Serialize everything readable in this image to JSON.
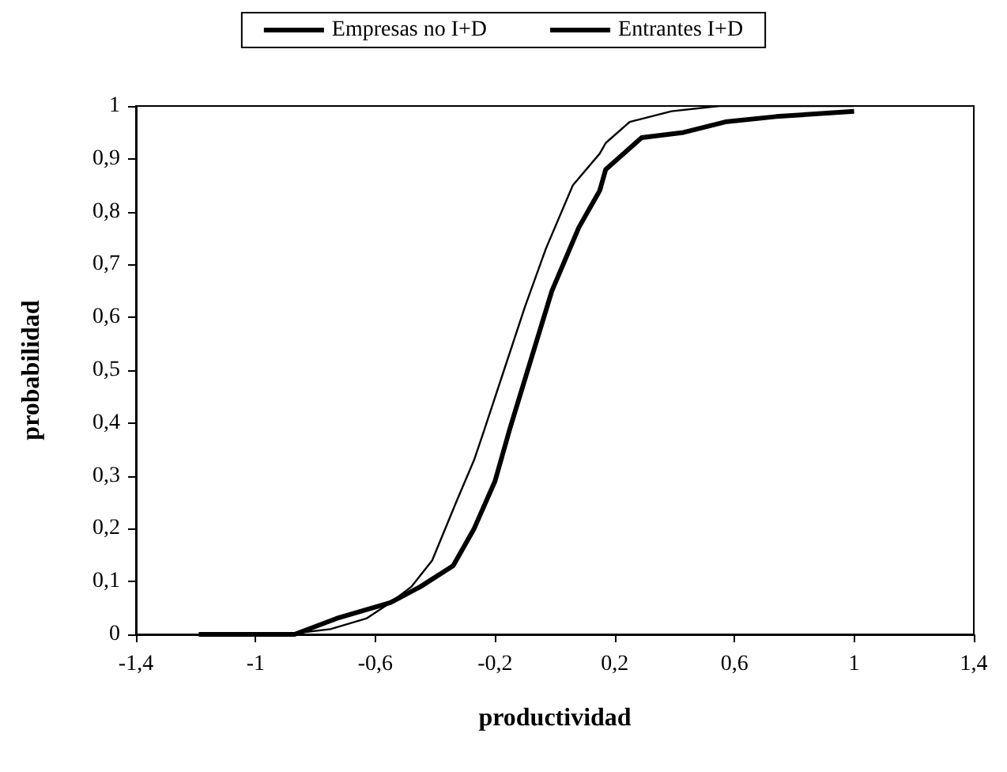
{
  "chart_data": {
    "type": "line",
    "xlabel": "productividad",
    "ylabel": "probabilidad",
    "legend": "top",
    "grid": false,
    "marker": "none",
    "line_style": "solid",
    "xlim": [
      -1.4,
      1.4
    ],
    "xticks": [
      {
        "value": -1.4,
        "label": "-1,4"
      },
      {
        "value": -1,
        "label": "-1"
      },
      {
        "value": -0.6,
        "label": "-0,6"
      },
      {
        "value": -0.2,
        "label": "-0,2"
      },
      {
        "value": 0.2,
        "label": "0,2"
      },
      {
        "value": 0.6,
        "label": "0,6"
      },
      {
        "value": 1,
        "label": "1"
      },
      {
        "value": 1.4,
        "label": "1,4"
      }
    ],
    "ylim": [
      0,
      1
    ],
    "yticks": [
      {
        "value": 0,
        "label": "0"
      },
      {
        "value": 0.1,
        "label": "0,1"
      },
      {
        "value": 0.2,
        "label": "0,2"
      },
      {
        "value": 0.3,
        "label": "0,3"
      },
      {
        "value": 0.4,
        "label": "0,4"
      },
      {
        "value": 0.5,
        "label": "0,5"
      },
      {
        "value": 0.6,
        "label": "0,6"
      },
      {
        "value": 0.7,
        "label": "0,7"
      },
      {
        "value": 0.8,
        "label": "0,8"
      },
      {
        "value": 0.9,
        "label": "0,9"
      },
      {
        "value": 1,
        "label": "1"
      }
    ],
    "series": [
      {
        "name": "Empresas no I+D",
        "color": "#000000",
        "x": [
          -1.19,
          -0.9,
          -0.75,
          -0.63,
          -0.55,
          -0.48,
          -0.41,
          -0.33,
          -0.27,
          -0.24,
          -0.17,
          -0.1,
          -0.03,
          0.06,
          0.15,
          0.17,
          0.25,
          0.39,
          0.55,
          1.0
        ],
        "values": [
          0,
          0,
          0.01,
          0.03,
          0.06,
          0.09,
          0.14,
          0.25,
          0.33,
          0.38,
          0.5,
          0.62,
          0.73,
          0.85,
          0.91,
          0.93,
          0.97,
          0.99,
          1.0,
          1.0
        ]
      },
      {
        "name": "Entrantes I+D",
        "color": "#000000",
        "x": [
          -1.19,
          -0.87,
          -0.73,
          -0.55,
          -0.45,
          -0.34,
          -0.27,
          -0.2,
          -0.15,
          -0.08,
          -0.01,
          0.08,
          0.15,
          0.17,
          0.29,
          0.43,
          0.57,
          0.74,
          1.0
        ],
        "values": [
          0,
          0,
          0.03,
          0.06,
          0.09,
          0.13,
          0.2,
          0.29,
          0.39,
          0.52,
          0.65,
          0.77,
          0.84,
          0.88,
          0.94,
          0.95,
          0.97,
          0.98,
          0.99
        ]
      }
    ]
  }
}
